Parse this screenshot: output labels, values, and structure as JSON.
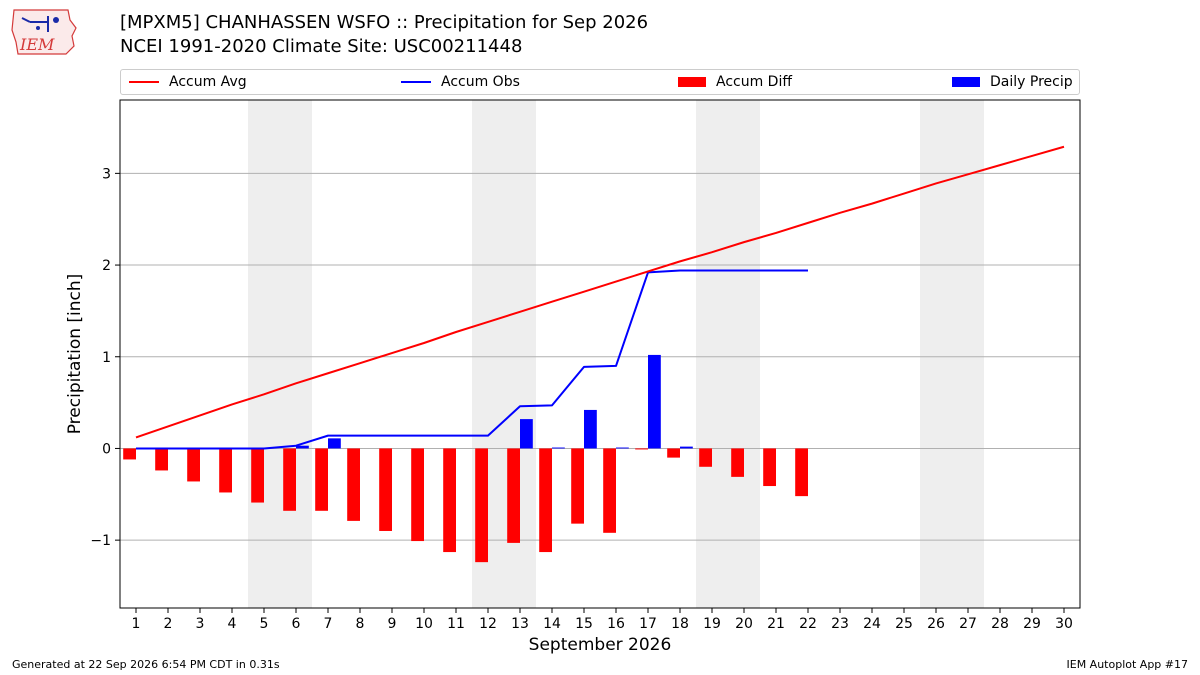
{
  "header": {
    "title_line1": "[MPXM5] CHANHASSEN WSFO :: Precipitation for Sep 2026",
    "title_line2": "NCEI 1991-2020 Climate Site: USC00211448"
  },
  "logo": {
    "text": "IEM"
  },
  "legend": {
    "items": [
      {
        "label": "Accum Avg",
        "kind": "line",
        "color": "#ff0000"
      },
      {
        "label": "Accum Obs",
        "kind": "line",
        "color": "#0000ff"
      },
      {
        "label": "Accum Diff",
        "kind": "box",
        "color": "#ff0000"
      },
      {
        "label": "Daily Precip",
        "kind": "box",
        "color": "#0000ff"
      }
    ]
  },
  "footer": {
    "left": "Generated at 22 Sep 2026 6:54 PM CDT in 0.31s",
    "right": "IEM Autoplot App #17"
  },
  "chart_data": {
    "type": "bar",
    "xlabel": "September 2026",
    "ylabel": "Precipitation [inch]",
    "xlim": [
      0.5,
      30.5
    ],
    "ylim": [
      -1.74,
      3.8
    ],
    "yticks": [
      -1,
      0,
      1,
      2,
      3
    ],
    "ytick_labels": [
      "−1",
      "0",
      "1",
      "2",
      "3"
    ],
    "days": [
      1,
      2,
      3,
      4,
      5,
      6,
      7,
      8,
      9,
      10,
      11,
      12,
      13,
      14,
      15,
      16,
      17,
      18,
      19,
      20,
      21,
      22,
      23,
      24,
      25,
      26,
      27,
      28,
      29,
      30
    ],
    "weekend_shading": [
      [
        5,
        6
      ],
      [
        12,
        13
      ],
      [
        19,
        20
      ],
      [
        26,
        27
      ]
    ],
    "grid": true,
    "legend_position": "top",
    "series": [
      {
        "name": "Accum Avg",
        "kind": "line",
        "color": "#ff0000",
        "values": [
          0.12,
          0.24,
          0.36,
          0.48,
          0.59,
          0.71,
          0.82,
          0.93,
          1.04,
          1.15,
          1.27,
          1.38,
          1.49,
          1.6,
          1.71,
          1.82,
          1.93,
          2.04,
          2.14,
          2.25,
          2.35,
          2.46,
          2.57,
          2.67,
          2.78,
          2.89,
          2.99,
          3.09,
          3.19,
          3.29
        ]
      },
      {
        "name": "Accum Obs",
        "kind": "line",
        "color": "#0000ff",
        "values": [
          0.0,
          0.0,
          0.0,
          0.0,
          0.0,
          0.03,
          0.14,
          0.14,
          0.14,
          0.14,
          0.14,
          0.14,
          0.46,
          0.47,
          0.89,
          0.9,
          1.92,
          1.94,
          1.94,
          1.94,
          1.94,
          1.94
        ]
      },
      {
        "name": "Accum Diff",
        "kind": "bar",
        "color": "#ff0000",
        "values": [
          -0.12,
          -0.24,
          -0.36,
          -0.48,
          -0.59,
          -0.68,
          -0.68,
          -0.79,
          -0.9,
          -1.01,
          -1.13,
          -1.24,
          -1.03,
          -1.13,
          -0.82,
          -0.92,
          -0.01,
          -0.1,
          -0.2,
          -0.31,
          -0.41,
          -0.52
        ]
      },
      {
        "name": "Daily Precip",
        "kind": "bar",
        "color": "#0000ff",
        "values": [
          0.0,
          0.0,
          0.0,
          0.0,
          0.0,
          0.03,
          0.11,
          0.0,
          0.0,
          0.0,
          0.0,
          0.0,
          0.32,
          0.01,
          0.42,
          0.01,
          1.02,
          0.02,
          0.0,
          0.0,
          0.0,
          0.0
        ]
      }
    ]
  }
}
